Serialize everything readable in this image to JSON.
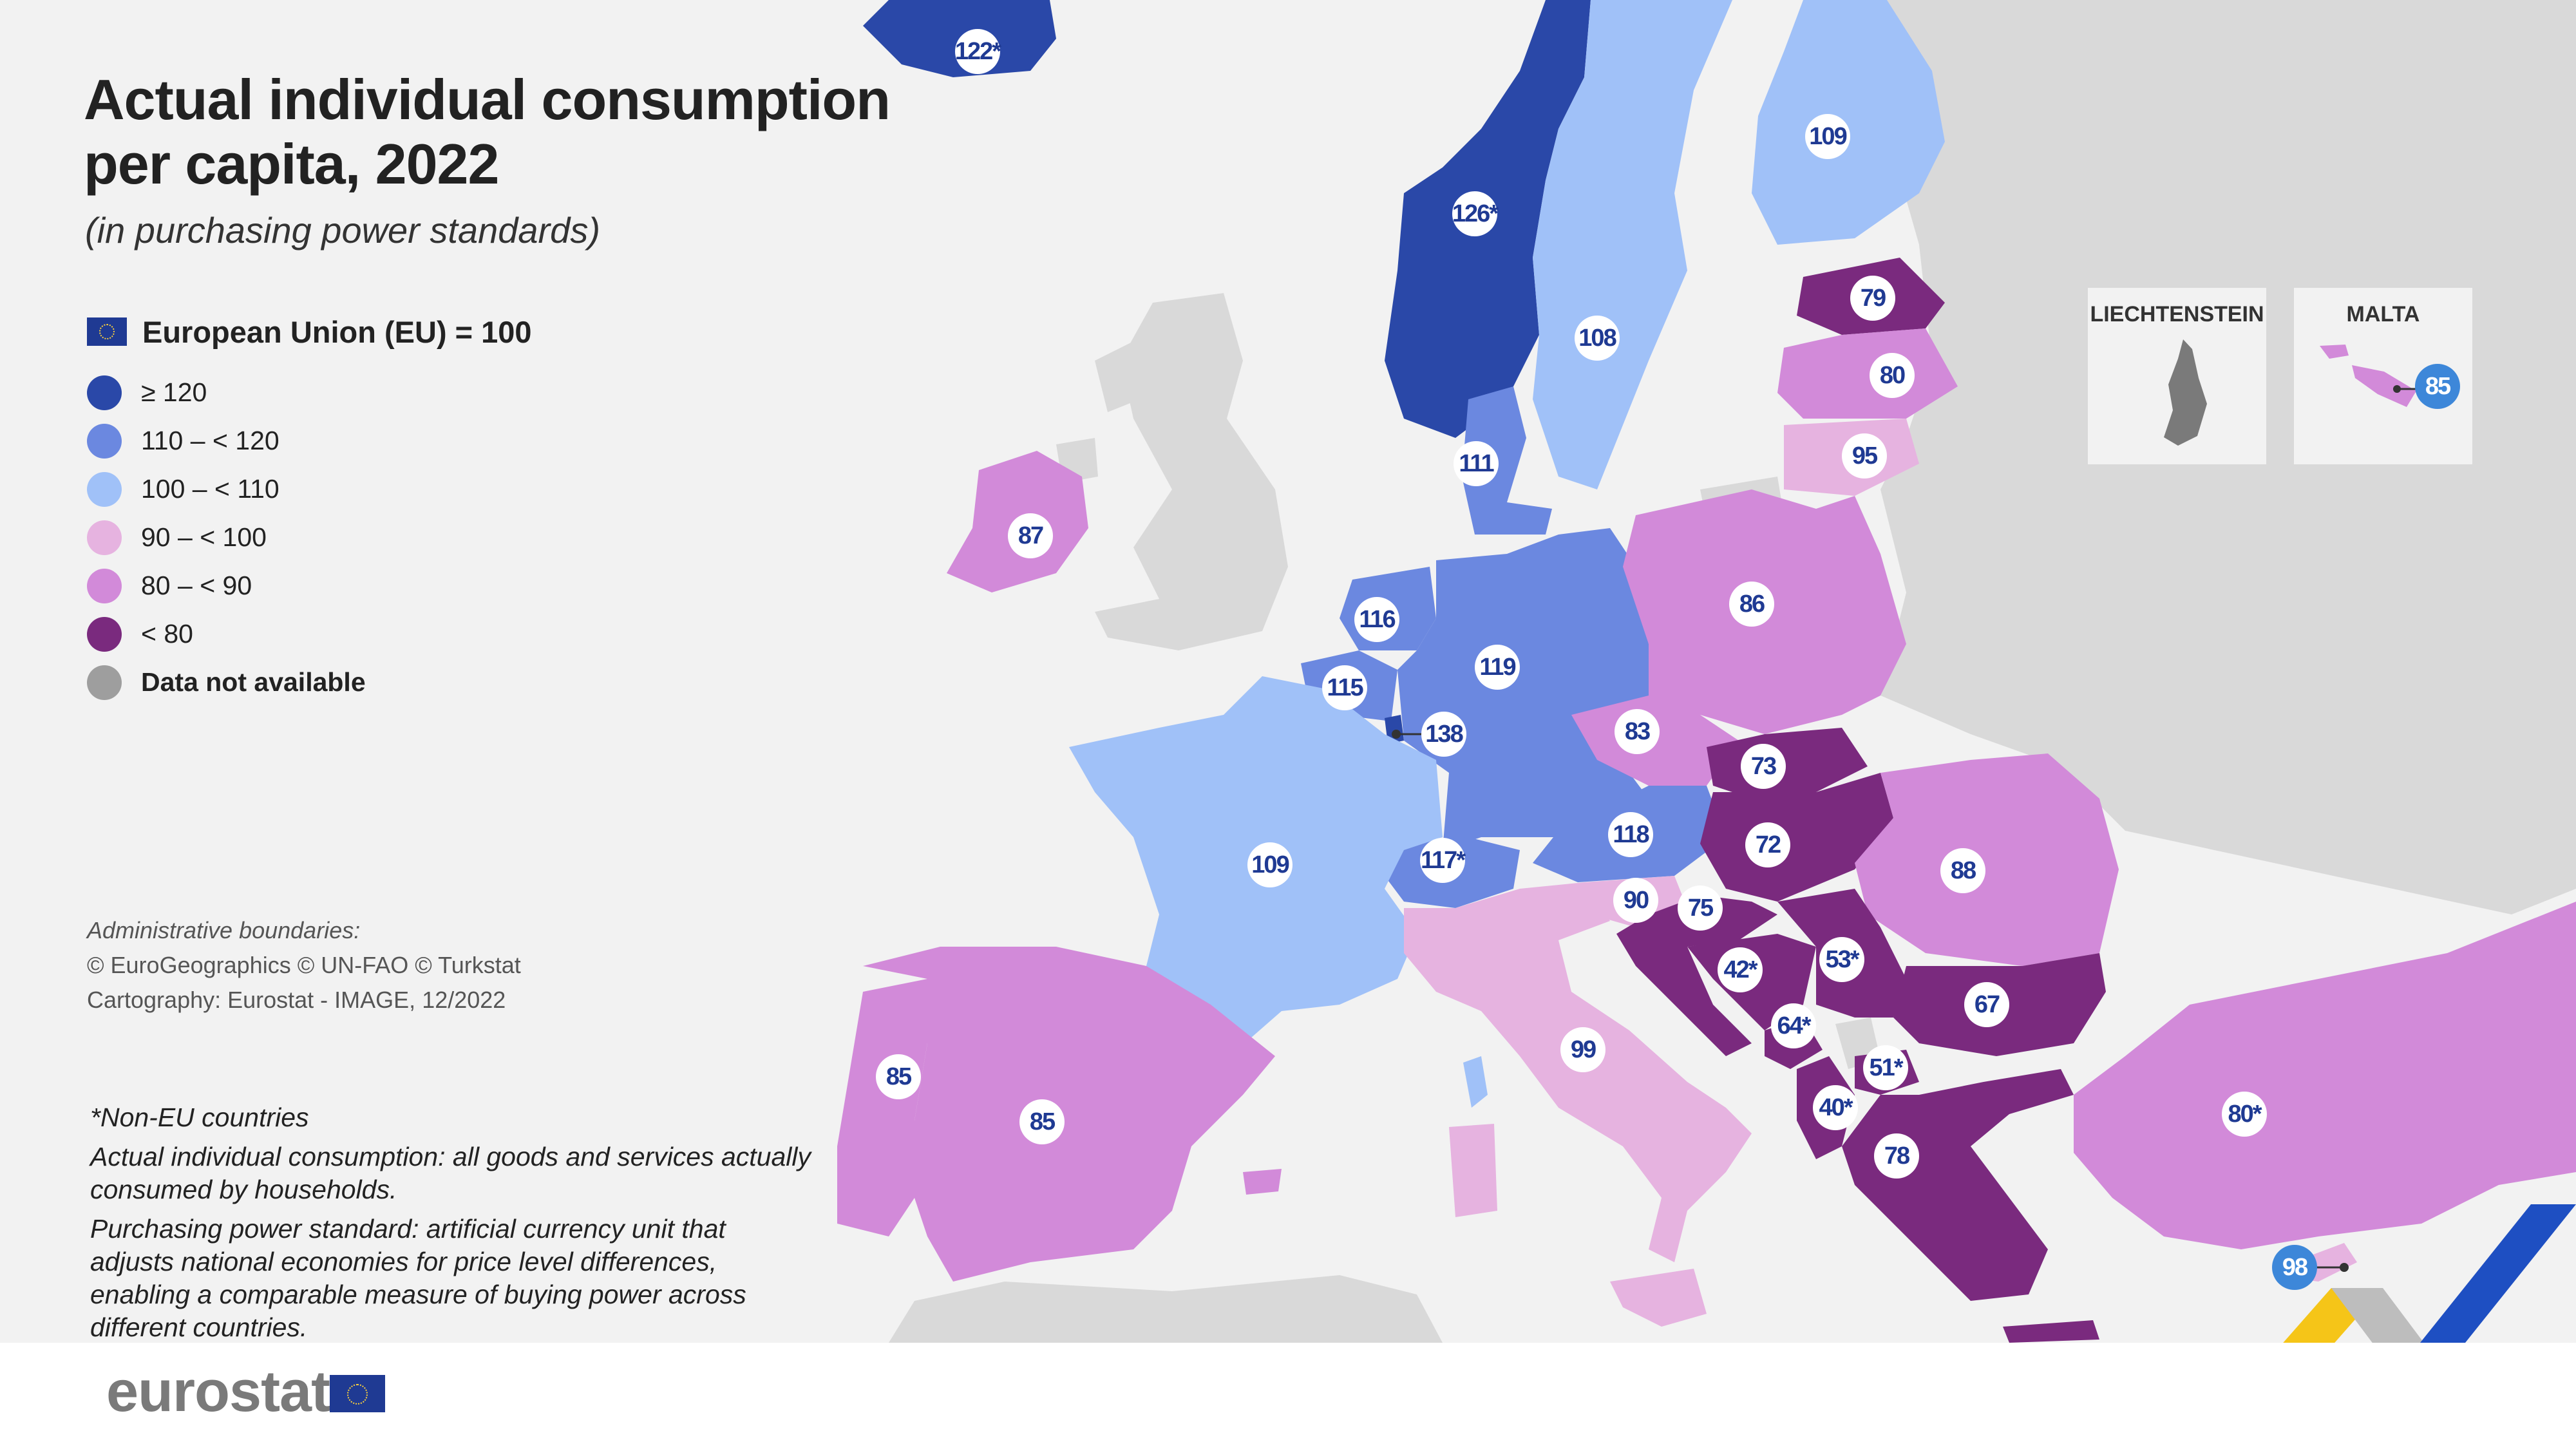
{
  "title_line1": "Actual individual consumption",
  "title_line2": "per capita, 2022",
  "subtitle": "(in purchasing power standards)",
  "legend": {
    "eu_label": "European Union (EU) = 100",
    "classes": [
      {
        "label": "≥ 120",
        "color": "#2a48a8"
      },
      {
        "label": "110 – < 120",
        "color": "#6b88e0"
      },
      {
        "label": "100 – < 110",
        "color": "#a0c1f8"
      },
      {
        "label": "90 – < 100",
        "color": "#e6b3e0"
      },
      {
        "label": "80 – < 90",
        "color": "#d28ad9"
      },
      {
        "label": "< 80",
        "color": "#7a2a7e"
      },
      {
        "label": "Data not available",
        "color": "#9e9e9e"
      }
    ]
  },
  "boundaries": {
    "title": "Administrative boundaries:",
    "line1": "© EuroGeographics  © UN-FAO © Turkstat",
    "line2": "Cartography: Eurostat - IMAGE, 12/2022"
  },
  "notes": {
    "non_eu": "*Non-EU countries",
    "aic": "Actual individual consumption: all goods and services actually consumed by households.",
    "pps": "Purchasing power standard: artificial currency unit that adjusts national economies for price level differences, enabling a comparable measure of buying power across different countries."
  },
  "insets": {
    "liechtenstein": "LIECHTENSTEIN",
    "malta": "MALTA"
  },
  "footer": {
    "logo": "eurostat"
  },
  "colors": {
    "ge120": "#2a48a8",
    "c110": "#6b88e0",
    "c100": "#a0c1f8",
    "c90": "#e6b3e0",
    "c80": "#d28ad9",
    "lt80": "#7a2a7e",
    "na": "#9e9e9e",
    "nonfocus_land": "#d9d9d9",
    "sea": "#f2f2f2"
  },
  "countries": [
    {
      "name": "Iceland",
      "value": "122*"
    },
    {
      "name": "Norway",
      "value": "126*"
    },
    {
      "name": "Sweden",
      "value": "108"
    },
    {
      "name": "Finland",
      "value": "109"
    },
    {
      "name": "Estonia",
      "value": "79"
    },
    {
      "name": "Latvia",
      "value": "80"
    },
    {
      "name": "Lithuania",
      "value": "95"
    },
    {
      "name": "Denmark",
      "value": "111"
    },
    {
      "name": "Ireland",
      "value": "87"
    },
    {
      "name": "Netherlands",
      "value": "116"
    },
    {
      "name": "Belgium",
      "value": "115"
    },
    {
      "name": "Luxembourg",
      "value": "138"
    },
    {
      "name": "Germany",
      "value": "119"
    },
    {
      "name": "Poland",
      "value": "86"
    },
    {
      "name": "Czechia",
      "value": "83"
    },
    {
      "name": "Slovakia",
      "value": "73"
    },
    {
      "name": "Austria",
      "value": "118"
    },
    {
      "name": "Switzerland",
      "value": "117*"
    },
    {
      "name": "France",
      "value": "109"
    },
    {
      "name": "Hungary",
      "value": "72"
    },
    {
      "name": "Romania",
      "value": "88"
    },
    {
      "name": "Slovenia",
      "value": "90"
    },
    {
      "name": "Croatia",
      "value": "75"
    },
    {
      "name": "Bosnia and Herzegovina",
      "value": "42*"
    },
    {
      "name": "Serbia",
      "value": "53*"
    },
    {
      "name": "Bulgaria",
      "value": "67"
    },
    {
      "name": "Montenegro",
      "value": "64*"
    },
    {
      "name": "North Macedonia",
      "value": "51*"
    },
    {
      "name": "Albania",
      "value": "40*"
    },
    {
      "name": "Greece",
      "value": "78"
    },
    {
      "name": "Italy",
      "value": "99"
    },
    {
      "name": "Portugal",
      "value": "85"
    },
    {
      "name": "Spain",
      "value": "85"
    },
    {
      "name": "Türkiye",
      "value": "80*"
    },
    {
      "name": "Cyprus",
      "value": "98"
    },
    {
      "name": "Malta",
      "value": "85"
    }
  ]
}
